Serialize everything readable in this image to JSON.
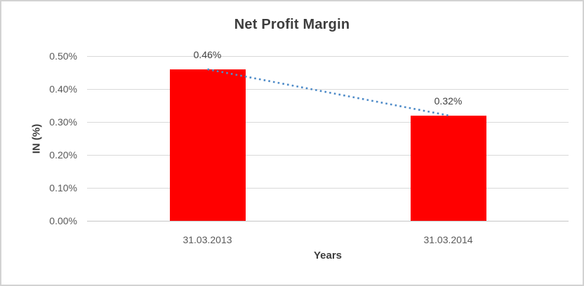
{
  "chart": {
    "colors": {
      "bar": "#ff0000",
      "trendline": "#4e8bc8",
      "gridline": "#d9d9d9",
      "axis_line": "#c6c6c6",
      "title_text": "#3d3d3d",
      "tick_text": "#595959",
      "frame_border": "#d2d2d2",
      "background": "#ffffff"
    }
  },
  "chart_data": {
    "type": "bar",
    "title": "Net Profit Margin",
    "xlabel": "Years",
    "ylabel": "IN (%)",
    "categories": [
      "31.03.2013",
      "31.03.2014"
    ],
    "values": [
      0.46,
      0.32
    ],
    "data_labels": [
      "0.46%",
      "0.32%"
    ],
    "ylim": [
      0,
      0.5
    ],
    "ytick_step": 0.1,
    "ytick_labels": [
      "0.00%",
      "0.10%",
      "0.20%",
      "0.30%",
      "0.40%",
      "0.50%"
    ],
    "grid": true,
    "legend": false,
    "trendline": {
      "type": "linear",
      "style": "dotted",
      "from_value": 0.46,
      "to_value": 0.32
    }
  }
}
